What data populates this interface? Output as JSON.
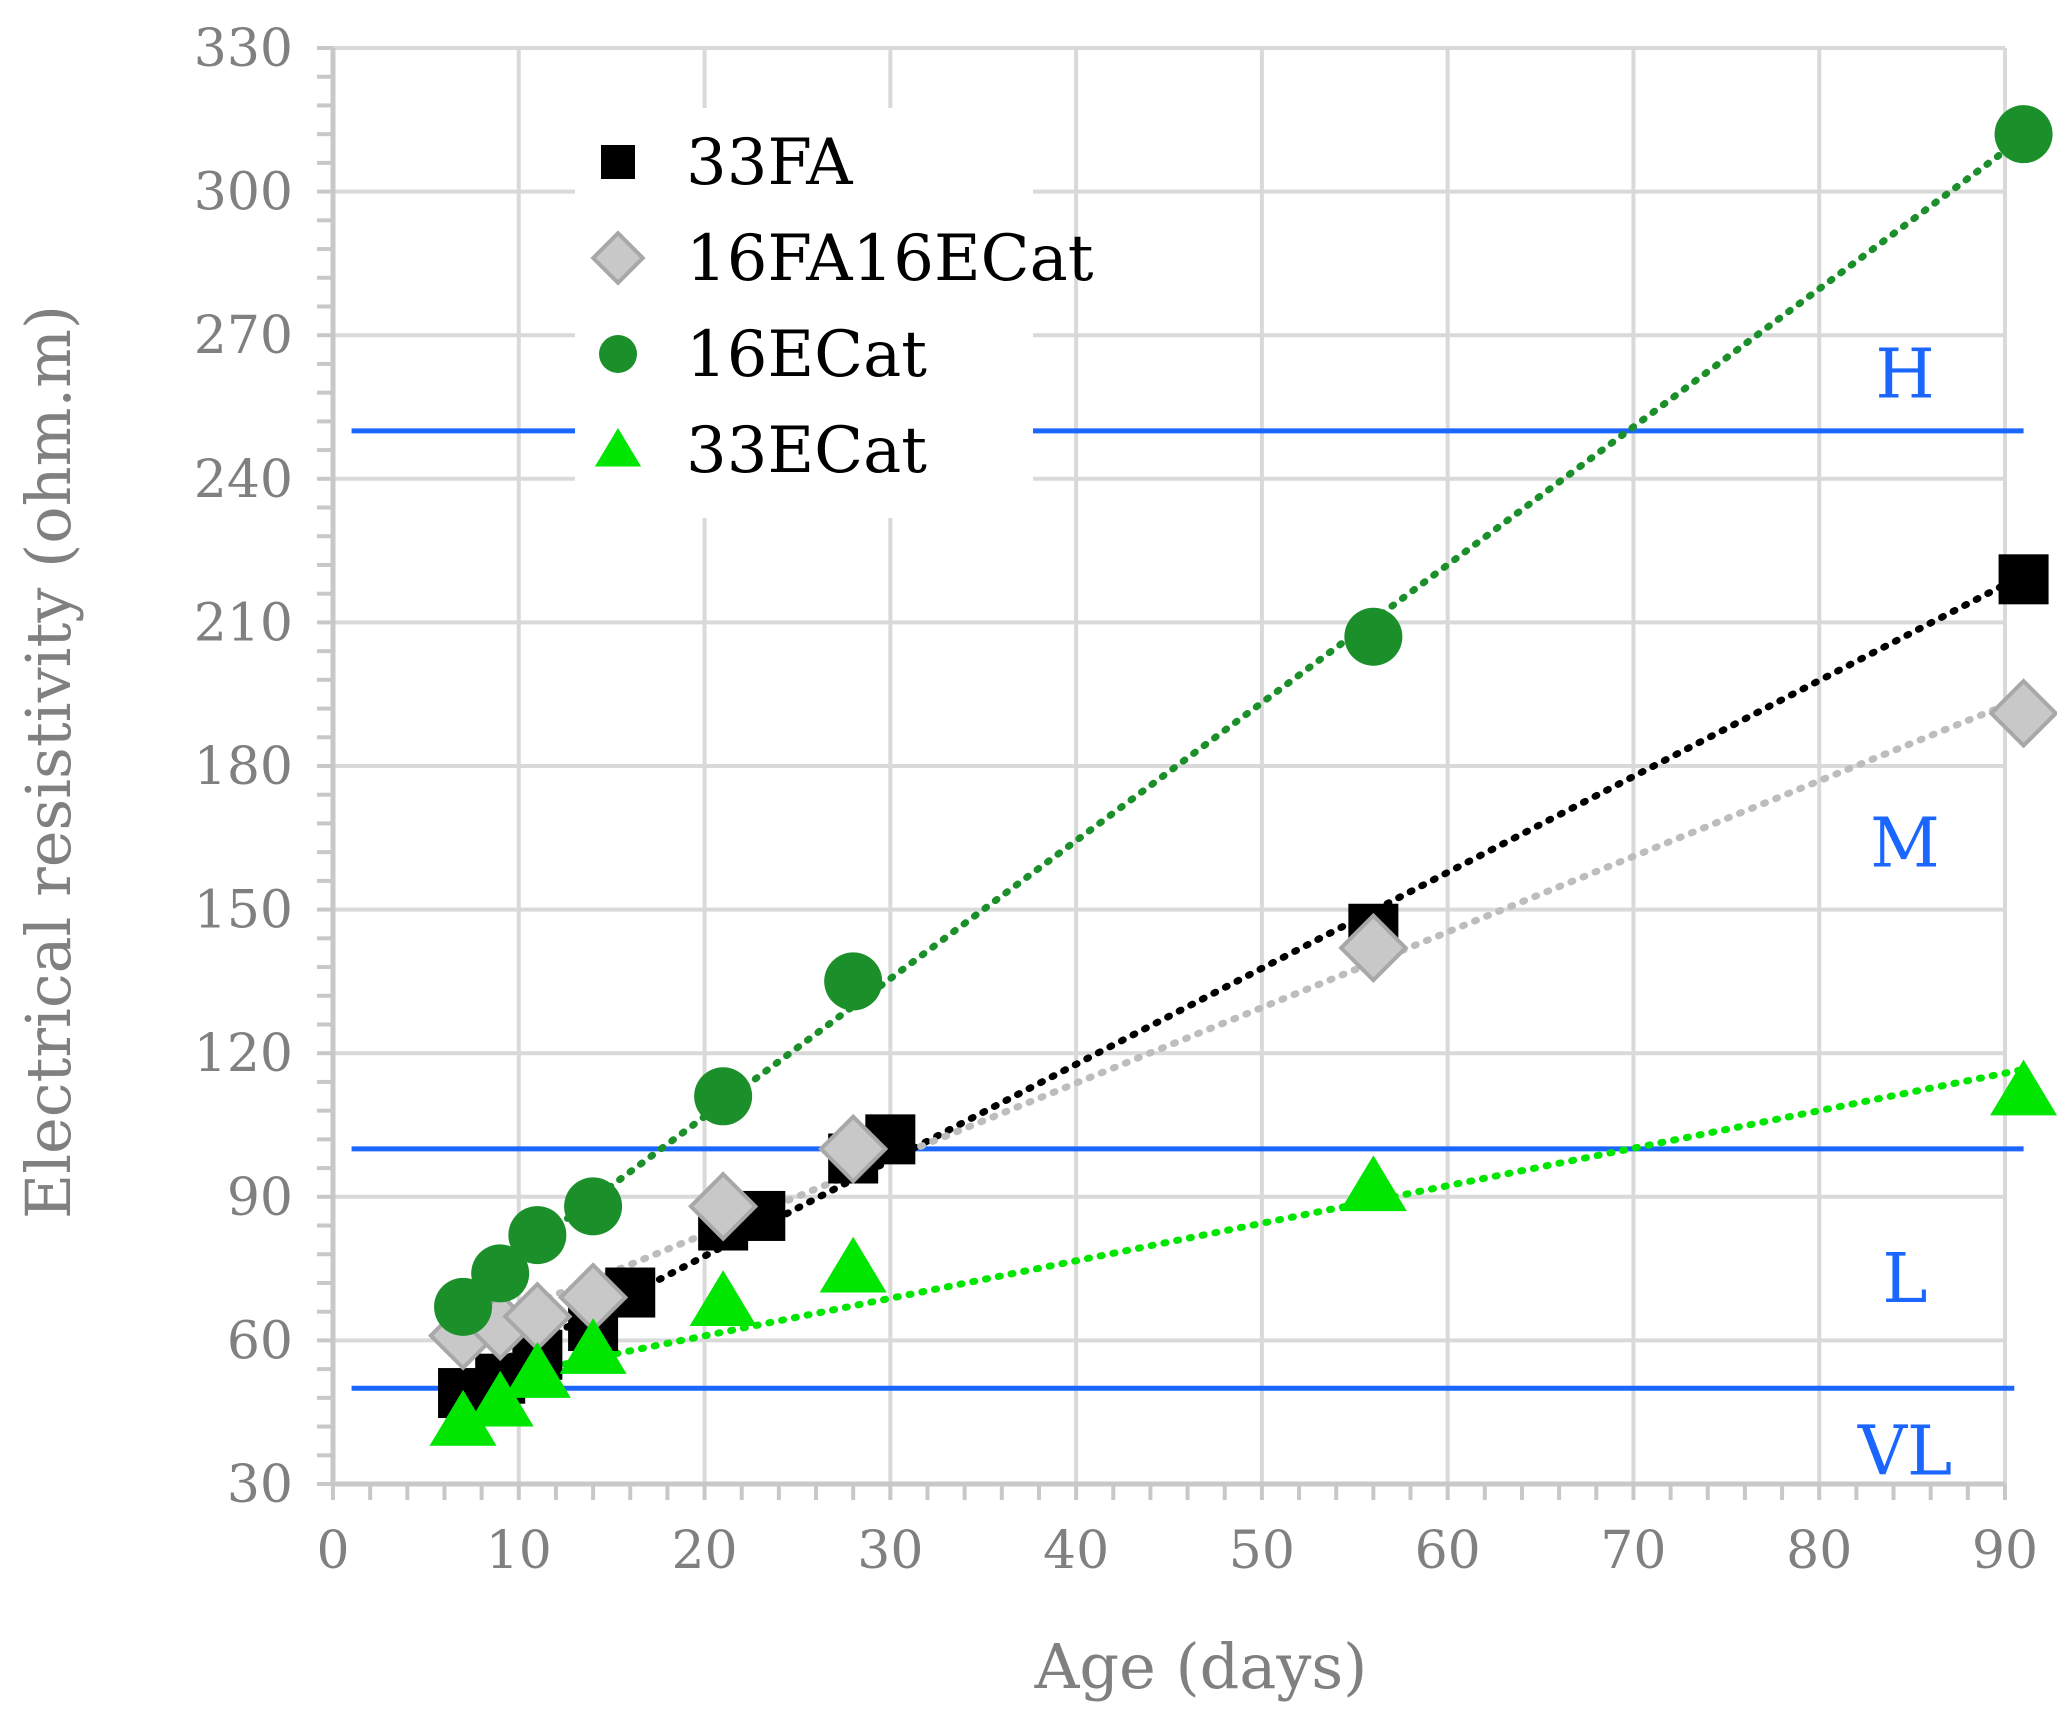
{
  "chart_data": {
    "type": "scatter",
    "title": "",
    "xlabel": "Age (days)",
    "ylabel": "Electrical resistivity  (ohm.m)",
    "xlim": [
      0,
      90
    ],
    "ylim": [
      30,
      330
    ],
    "xticks": [
      0,
      10,
      20,
      30,
      40,
      50,
      60,
      70,
      80,
      90
    ],
    "yticks": [
      30,
      60,
      90,
      120,
      150,
      180,
      210,
      240,
      270,
      300,
      330
    ],
    "grid": true,
    "legend_position": "top-left",
    "series": [
      {
        "name": "33FA",
        "marker": "square",
        "color": "#000000",
        "trendline": "dotted",
        "trend_color": "#000000",
        "x": [
          7,
          9,
          11,
          14,
          16,
          21,
          23,
          28,
          30,
          56,
          91
        ],
        "y": [
          49,
          52,
          57,
          63,
          70,
          84,
          86,
          98,
          102,
          146,
          219
        ]
      },
      {
        "name": "16FA16ECat",
        "marker": "diamond",
        "color": "#c8c8c8",
        "trendline": "dotted",
        "trend_color": "#bdbdbd",
        "x": [
          7,
          9,
          11,
          14,
          21,
          28,
          56,
          91
        ],
        "y": [
          61,
          63,
          65,
          69,
          88,
          100,
          142,
          191
        ]
      },
      {
        "name": "16ECat",
        "marker": "circle",
        "color": "#1a8f2a",
        "trendline": "dotted",
        "trend_color": "#1a8f2a",
        "x": [
          7,
          9,
          11,
          14,
          21,
          28,
          56,
          91
        ],
        "y": [
          67,
          74,
          82,
          88,
          111,
          135,
          207,
          312
        ]
      },
      {
        "name": "33ECat",
        "marker": "triangle",
        "color": "#00e600",
        "trendline": "dotted",
        "trend_color": "#00e600",
        "x": [
          7,
          9,
          11,
          14,
          21,
          28,
          56,
          91
        ],
        "y": [
          43,
          47,
          53,
          58,
          68,
          75,
          92,
          112
        ]
      }
    ],
    "zones": {
      "line_color": "#1a66ff",
      "thresholds": [
        {
          "y": 50,
          "x_range": [
            1,
            90.5
          ]
        },
        {
          "y": 100,
          "x_range": [
            1,
            91
          ]
        },
        {
          "y": 250,
          "x_range": [
            1,
            91
          ]
        }
      ],
      "labels": [
        {
          "text": "H",
          "y": 262
        },
        {
          "text": "M",
          "y": 164
        },
        {
          "text": "L",
          "y": 73
        },
        {
          "text": "VL",
          "y": 37
        }
      ]
    }
  }
}
